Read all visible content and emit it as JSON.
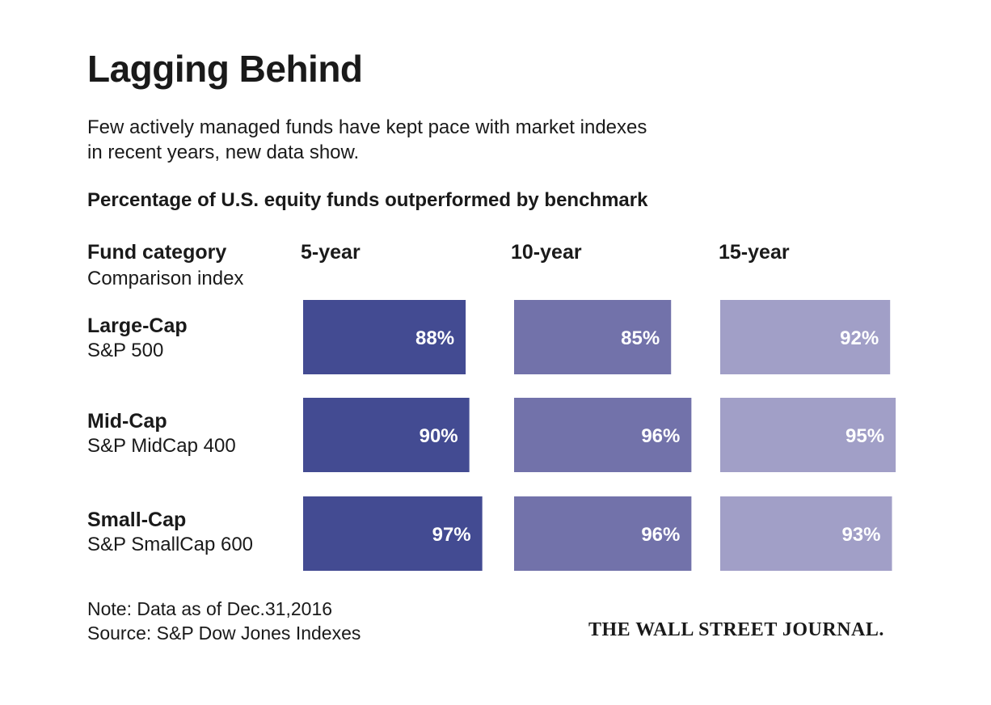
{
  "title": "Lagging Behind",
  "subtitle_lines": [
    "Few actively managed funds have kept pace with market indexes",
    "in recent years, new data show."
  ],
  "chart_heading": "Percentage of U.S. equity funds outperformed by benchmark",
  "row_header": {
    "label": "Fund category",
    "sublabel": "Comparison index"
  },
  "note": "Note: Data as of Dec.31,2016",
  "source": "Source: S&P Dow Jones Indexes",
  "publisher": "THE WALL STREET JOURNAL.",
  "colors": {
    "5-year": "#434b92",
    "10-year": "#7272aa",
    "15-year": "#a19fc7"
  },
  "chart_data": {
    "type": "bar",
    "title": "Percentage of U.S. equity funds outperformed by benchmark",
    "categories": [
      {
        "name": "Large-Cap",
        "index": "S&P 500"
      },
      {
        "name": "Mid-Cap",
        "index": "S&P MidCap 400"
      },
      {
        "name": "Small-Cap",
        "index": "S&P SmallCap 600"
      }
    ],
    "series": [
      {
        "name": "5-year",
        "values": [
          88,
          90,
          97
        ],
        "labels": [
          "88%",
          "90%",
          "97%"
        ]
      },
      {
        "name": "10-year",
        "values": [
          85,
          96,
          96
        ],
        "labels": [
          "85%",
          "96%",
          "96%"
        ]
      },
      {
        "name": "15-year",
        "values": [
          92,
          95,
          93
        ],
        "labels": [
          "92%",
          "95%",
          "93%"
        ]
      }
    ],
    "unit": "%",
    "ylim": [
      0,
      100
    ],
    "grid": false,
    "legend": "none"
  }
}
